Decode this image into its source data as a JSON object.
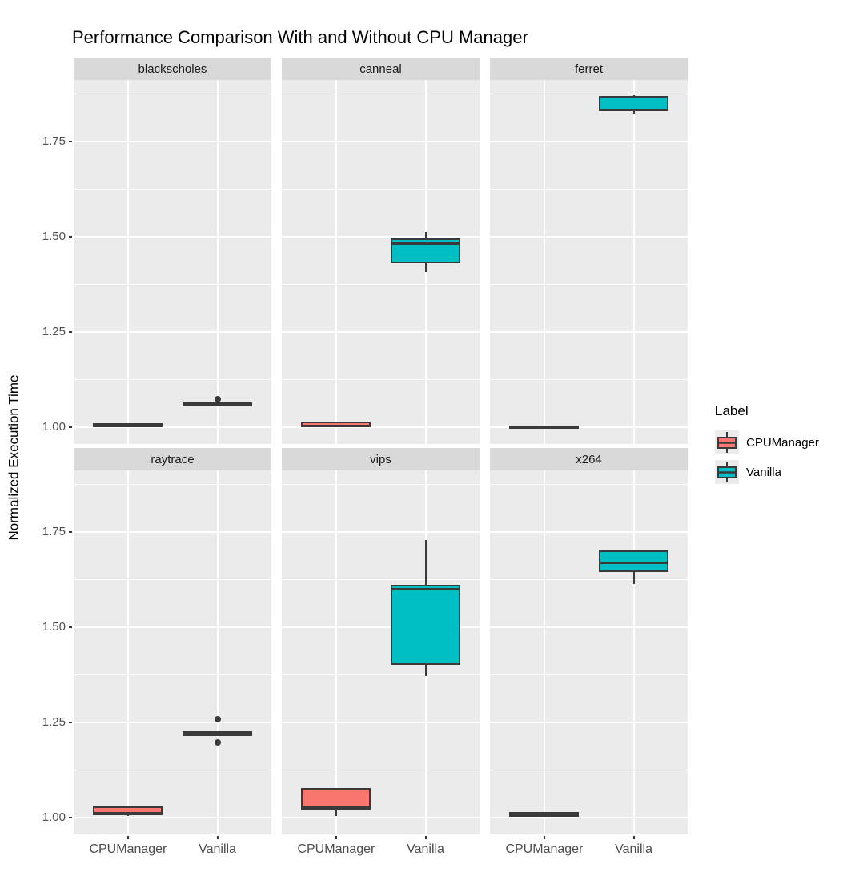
{
  "chart_data": {
    "type": "boxplot",
    "title": "Performance Comparison With and Without CPU Manager",
    "ylabel": "Normalized Execution Time",
    "xlabel": "",
    "ylim": [
      0.956,
      1.912
    ],
    "y_ticks": [
      1.0,
      1.25,
      1.5,
      1.75
    ],
    "y_tick_labels": [
      "1.00",
      "1.25",
      "1.50",
      "1.75"
    ],
    "minor_y_ticks": [
      1.125,
      1.375,
      1.625,
      1.875
    ],
    "x_categories": [
      "CPUManager",
      "Vanilla"
    ],
    "facet_layout": {
      "rows": 2,
      "cols": 3
    },
    "grid": "on",
    "legend": {
      "title": "Label",
      "position": "right",
      "entries": [
        {
          "label": "CPUManager",
          "color": "#F8766D"
        },
        {
          "label": "Vanilla",
          "color": "#00BFC4"
        }
      ]
    },
    "style_colors": {
      "panel_bg": "#EBEBEB",
      "strip_bg": "#D9D9D9",
      "gridline": "#FFFFFF",
      "box_border": "#3A3A3A",
      "tick_label": "#4D4D4D"
    },
    "facets": [
      {
        "name": "blackscholes",
        "boxes": [
          {
            "group": "CPUManager",
            "color": "#F8766D",
            "min": 1.001,
            "q1": 1.001,
            "median": 1.006,
            "q3": 1.011,
            "max": 1.011,
            "outliers": []
          },
          {
            "group": "Vanilla",
            "color": "#00BFC4",
            "min": 1.054,
            "q1": 1.054,
            "median": 1.059,
            "q3": 1.065,
            "max": 1.065,
            "outliers": [
              1.074
            ]
          }
        ]
      },
      {
        "name": "canneal",
        "boxes": [
          {
            "group": "CPUManager",
            "color": "#F8766D",
            "min": 1.0,
            "q1": 1.0,
            "median": 1.004,
            "q3": 1.014,
            "max": 1.014,
            "outliers": []
          },
          {
            "group": "Vanilla",
            "color": "#00BFC4",
            "min": 1.408,
            "q1": 1.431,
            "median": 1.482,
            "q3": 1.497,
            "max": 1.513,
            "outliers": []
          }
        ]
      },
      {
        "name": "ferret",
        "boxes": [
          {
            "group": "CPUManager",
            "color": "#F8766D",
            "min": 0.998,
            "q1": 0.998,
            "median": 1.001,
            "q3": 1.004,
            "max": 1.004,
            "outliers": []
          },
          {
            "group": "Vanilla",
            "color": "#00BFC4",
            "min": 1.824,
            "q1": 1.83,
            "median": 1.834,
            "q3": 1.87,
            "max": 1.872,
            "outliers": []
          }
        ]
      },
      {
        "name": "raytrace",
        "boxes": [
          {
            "group": "CPUManager",
            "color": "#F8766D",
            "min": 1.005,
            "q1": 1.007,
            "median": 1.012,
            "q3": 1.03,
            "max": 1.03,
            "outliers": []
          },
          {
            "group": "Vanilla",
            "color": "#00BFC4",
            "min": 1.215,
            "q1": 1.215,
            "median": 1.221,
            "q3": 1.227,
            "max": 1.227,
            "outliers": [
              1.258,
              1.197
            ]
          }
        ]
      },
      {
        "name": "vips",
        "boxes": [
          {
            "group": "CPUManager",
            "color": "#F8766D",
            "min": 1.004,
            "q1": 1.021,
            "median": 1.027,
            "q3": 1.078,
            "max": 1.078,
            "outliers": []
          },
          {
            "group": "Vanilla",
            "color": "#00BFC4",
            "min": 1.372,
            "q1": 1.401,
            "median": 1.599,
            "q3": 1.612,
            "max": 1.729,
            "outliers": []
          }
        ]
      },
      {
        "name": "x264",
        "boxes": [
          {
            "group": "CPUManager",
            "color": "#F8766D",
            "min": 1.003,
            "q1": 1.003,
            "median": 1.008,
            "q3": 1.014,
            "max": 1.014,
            "outliers": []
          },
          {
            "group": "Vanilla",
            "color": "#00BFC4",
            "min": 1.614,
            "q1": 1.645,
            "median": 1.67,
            "q3": 1.702,
            "max": 1.702,
            "outliers": []
          }
        ]
      }
    ]
  }
}
